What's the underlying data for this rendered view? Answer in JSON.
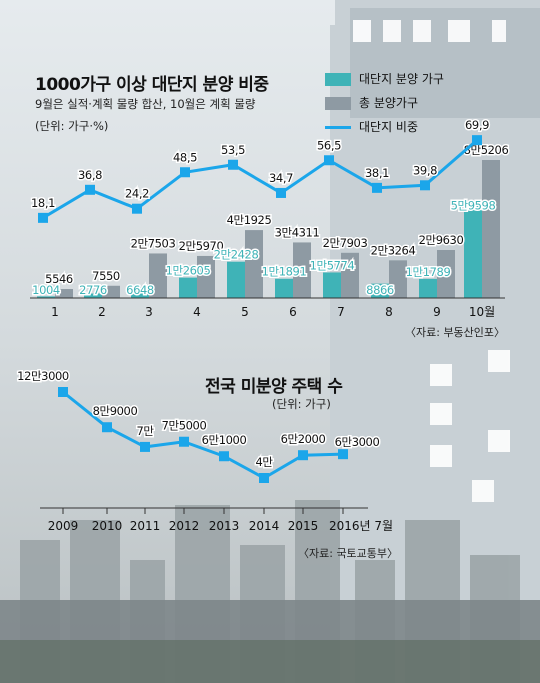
{
  "colors": {
    "share_bar": "#3fb3b7",
    "total_bar": "#8e9aa3",
    "share_line": "#1ba6ea",
    "unsold_line": "#1ba6ea",
    "background": "#dde3e6"
  },
  "chart1": {
    "title": "1000가구 이상 대단지 분양 비중",
    "subtitle": "9월은 실적·계획 물량 합산, 10월은 계획 물량",
    "unit": "(단위: 가구·%)",
    "source": "〈자료: 부동산인포〉",
    "legend": {
      "large": "대단지 분양 가구",
      "total": "총 분양가구",
      "share": "대단지 비중"
    }
  },
  "chart2": {
    "title": "전국 미분양 주택 수",
    "unit": "(단위: 가구)",
    "source": "〈자료: 국토교통부〉"
  },
  "chart_data": [
    {
      "type": "bar",
      "title": "1000가구 이상 대단지 분양 비중",
      "categories": [
        "1",
        "2",
        "3",
        "4",
        "5",
        "6",
        "7",
        "8",
        "9",
        "10월"
      ],
      "series": [
        {
          "name": "대단지 분양 가구",
          "values": [
            1004,
            2776,
            6648,
            12605,
            22428,
            11891,
            15774,
            8866,
            11789,
            59598
          ],
          "labels": [
            "1004",
            "2776",
            "6648",
            "1만2605",
            "2만2428",
            "1만1891",
            "1만5774",
            "8866",
            "1만1789",
            "5만9598"
          ]
        },
        {
          "name": "총 분양가구",
          "values": [
            5546,
            7550,
            27503,
            25970,
            41925,
            34311,
            27903,
            23264,
            29630,
            85206
          ],
          "labels": [
            "5546",
            "7550",
            "2만7503",
            "2만5970",
            "4만1925",
            "3만4311",
            "2만7903",
            "2만3264",
            "2만9630",
            "8만5206"
          ]
        },
        {
          "name": "대단지 비중",
          "values": [
            18.1,
            36.8,
            24.2,
            48.5,
            53.5,
            34.7,
            56.5,
            38.1,
            39.8,
            69.9
          ],
          "labels": [
            "18,1",
            "36,8",
            "24,2",
            "48,5",
            "53,5",
            "34,7",
            "56,5",
            "38,1",
            "39,8",
            "69,9"
          ]
        }
      ]
    },
    {
      "type": "line",
      "title": "전국 미분양 주택 수",
      "categories": [
        "2009",
        "2010",
        "2011",
        "2012",
        "2013",
        "2014",
        "2015",
        "2016년 7월"
      ],
      "values": [
        123000,
        89000,
        70000,
        75000,
        61000,
        40000,
        62000,
        63000
      ],
      "labels": [
        "12만3000",
        "8만9000",
        "7만",
        "7만5000",
        "6만1000",
        "4만",
        "6만2000",
        "6만3000"
      ]
    }
  ]
}
